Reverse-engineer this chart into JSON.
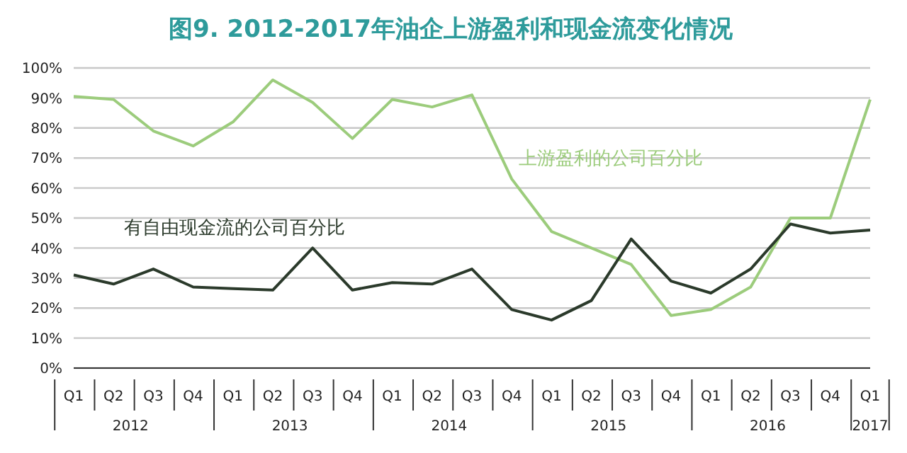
{
  "chart_data": {
    "type": "line",
    "title": "图9. 2012-2017年油企上游盈利和现金流变化情况",
    "categories": [
      "Q1",
      "Q2",
      "Q3",
      "Q4",
      "Q1",
      "Q2",
      "Q3",
      "Q4",
      "Q1",
      "Q2",
      "Q3",
      "Q4",
      "Q1",
      "Q2",
      "Q3",
      "Q4",
      "Q1",
      "Q2",
      "Q3",
      "Q4",
      "Q1"
    ],
    "annotations": [
      "2012",
      "2013",
      "2014",
      "2015",
      "2016",
      "2017"
    ],
    "series": [
      {
        "name": "上游盈利的公司百分比",
        "color": "#9ccc7c",
        "values": [
          90.5,
          89.5,
          79,
          74,
          82,
          96,
          88.5,
          76.5,
          89.5,
          87,
          91,
          63,
          45.5,
          40,
          34.5,
          17.5,
          19.5,
          27,
          50,
          50,
          89.5
        ]
      },
      {
        "name": "有自由现金流的公司百分比",
        "color": "#2b3a2b",
        "values": [
          31,
          28,
          33,
          27,
          26.5,
          26,
          40,
          26,
          28.5,
          28,
          33,
          19.5,
          16,
          22.5,
          43,
          29,
          25,
          33,
          48,
          45,
          46
        ]
      }
    ],
    "ylim": [
      0,
      100
    ],
    "yticks": [
      {
        "value": 0,
        "label": "0%"
      },
      {
        "value": 10,
        "label": "10%"
      },
      {
        "value": 20,
        "label": "20%"
      },
      {
        "value": 30,
        "label": "30%"
      },
      {
        "value": 40,
        "label": "40%"
      },
      {
        "value": 50,
        "label": "50%"
      },
      {
        "value": 60,
        "label": "60%"
      },
      {
        "value": 70,
        "label": "70%"
      },
      {
        "value": 80,
        "label": "80%"
      },
      {
        "value": 90,
        "label": "90%"
      },
      {
        "value": 100,
        "label": "100%"
      }
    ],
    "grid": "y",
    "legend": false,
    "marker": "none",
    "line_style": "solid"
  }
}
